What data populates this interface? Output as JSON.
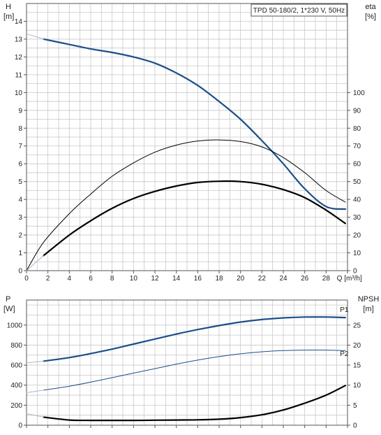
{
  "chart_data": [
    {
      "type": "line",
      "title": "TPD 50-180/2, 1*230 V, 50Hz",
      "xlabel": "Q [m³/h]",
      "x_axis": {
        "label": "Q [m³/h]",
        "range": [
          0,
          30
        ],
        "ticks": [
          0,
          2,
          4,
          6,
          8,
          10,
          12,
          14,
          16,
          18,
          20,
          22,
          24,
          26,
          28,
          30
        ],
        "tick_labels": [
          "0",
          "2",
          "4",
          "6",
          "8",
          "10",
          "12",
          "14",
          "16",
          "18",
          "20",
          "22",
          "24",
          "26",
          "28",
          ""
        ]
      },
      "y_left": {
        "label_top": "H",
        "label_bottom": "[m]",
        "range": [
          0,
          15
        ],
        "ticks": [
          0,
          1,
          2,
          3,
          4,
          5,
          6,
          7,
          8,
          9,
          10,
          11,
          12,
          13,
          14
        ]
      },
      "y_right": {
        "label_top": "eta",
        "label_bottom": "[%]",
        "range": [
          0,
          150
        ],
        "ticks": [
          0,
          10,
          20,
          30,
          40,
          50,
          60,
          70,
          80,
          90,
          100
        ]
      },
      "grid": true,
      "series": [
        {
          "id": "H",
          "axis": "left",
          "color": "#1b4f8a",
          "width": 2.2,
          "x": [
            1.6,
            4,
            6,
            8,
            10,
            12,
            14,
            16,
            18,
            20,
            22,
            24,
            26,
            28,
            29.8
          ],
          "y": [
            13.0,
            12.7,
            12.45,
            12.25,
            12.0,
            11.65,
            11.1,
            10.4,
            9.5,
            8.5,
            7.3,
            6.0,
            4.6,
            3.6,
            3.45
          ]
        },
        {
          "id": "H-extension",
          "axis": "left",
          "color": "#a8b8cc",
          "width": 1,
          "x": [
            0,
            1.6
          ],
          "y": [
            13.3,
            13.0
          ]
        },
        {
          "id": "eta-total",
          "axis": "right",
          "color": "#000000",
          "width": 1,
          "x": [
            0,
            1.6,
            4,
            6,
            8,
            10,
            12,
            14,
            16,
            18,
            20,
            22,
            24,
            26,
            28,
            29.8
          ],
          "y": [
            0,
            16,
            32,
            43,
            53,
            60.5,
            66.5,
            70.5,
            72.8,
            73.4,
            72.5,
            69.5,
            63.5,
            55,
            45,
            38.5
          ]
        },
        {
          "id": "eta-pump",
          "axis": "right",
          "color": "#000000",
          "width": 2.2,
          "x": [
            1.6,
            4,
            6,
            8,
            10,
            12,
            14,
            16,
            18,
            20,
            22,
            24,
            26,
            28,
            29.8
          ],
          "y": [
            8.5,
            20,
            28,
            35,
            40.5,
            44.5,
            47.5,
            49.5,
            50.2,
            50,
            48.5,
            45.5,
            41,
            34,
            26.5
          ]
        },
        {
          "id": "eta-extension",
          "axis": "right",
          "color": "#a8b8cc",
          "width": 1,
          "x": [
            0,
            1.6
          ],
          "y": [
            0,
            8.5
          ]
        }
      ]
    },
    {
      "type": "line",
      "x_axis": {
        "range": [
          0,
          30
        ],
        "ticks": [
          0,
          2,
          4,
          6,
          8,
          10,
          12,
          14,
          16,
          18,
          20,
          22,
          24,
          26,
          28,
          30
        ]
      },
      "y_left": {
        "label_top": "P",
        "label_bottom": "[W]",
        "range": [
          0,
          1250
        ],
        "ticks": [
          0,
          200,
          400,
          600,
          800,
          1000
        ]
      },
      "y_right": {
        "label_top": "NPSH",
        "label_bottom": "[m]",
        "range": [
          0,
          31.25
        ],
        "ticks": [
          0,
          5,
          10,
          15,
          20,
          25
        ]
      },
      "grid": true,
      "series": [
        {
          "id": "P1",
          "name": "P1",
          "axis": "left",
          "color": "#1b4f8a",
          "width": 2.2,
          "x": [
            1.6,
            4,
            6,
            8,
            10,
            12,
            14,
            16,
            18,
            20,
            22,
            24,
            26,
            28,
            29.8
          ],
          "y": [
            640,
            675,
            715,
            760,
            810,
            860,
            910,
            955,
            995,
            1030,
            1055,
            1072,
            1080,
            1080,
            1075
          ]
        },
        {
          "id": "P1-extension",
          "axis": "left",
          "color": "#a8b8cc",
          "width": 1,
          "x": [
            0,
            1.6
          ],
          "y": [
            622,
            640
          ]
        },
        {
          "id": "P2",
          "name": "P2",
          "axis": "left",
          "color": "#1b4f8a",
          "width": 1,
          "x": [
            1.6,
            4,
            6,
            8,
            10,
            12,
            14,
            16,
            18,
            20,
            22,
            24,
            26,
            28,
            29.8
          ],
          "y": [
            350,
            390,
            430,
            475,
            520,
            565,
            610,
            650,
            685,
            713,
            733,
            745,
            750,
            750,
            745
          ]
        },
        {
          "id": "P2-extension",
          "axis": "left",
          "color": "#a8b8cc",
          "width": 1,
          "x": [
            0,
            1.6
          ],
          "y": [
            325,
            350
          ]
        },
        {
          "id": "NPSH",
          "axis": "right",
          "color": "#000000",
          "width": 2.2,
          "x": [
            1.6,
            4,
            6,
            8,
            10,
            12,
            14,
            16,
            18,
            20,
            22,
            24,
            26,
            28,
            29.8
          ],
          "y": [
            2.0,
            1.3,
            1.2,
            1.2,
            1.2,
            1.25,
            1.3,
            1.35,
            1.5,
            1.9,
            2.6,
            3.8,
            5.5,
            7.5,
            9.9
          ]
        },
        {
          "id": "NPSH-extension",
          "axis": "right",
          "color": "#a8b8cc",
          "width": 1,
          "x": [
            0,
            1.6
          ],
          "y": [
            2.9,
            2.0
          ]
        }
      ],
      "labels": [
        {
          "text": "P1",
          "series": "P1",
          "at_x": 29.3,
          "at_y": 1132,
          "color": "#1b4f8a"
        },
        {
          "text": "P2",
          "series": "P2",
          "at_x": 29.3,
          "at_y": 690,
          "color": "#1b4f8a"
        }
      ]
    }
  ]
}
